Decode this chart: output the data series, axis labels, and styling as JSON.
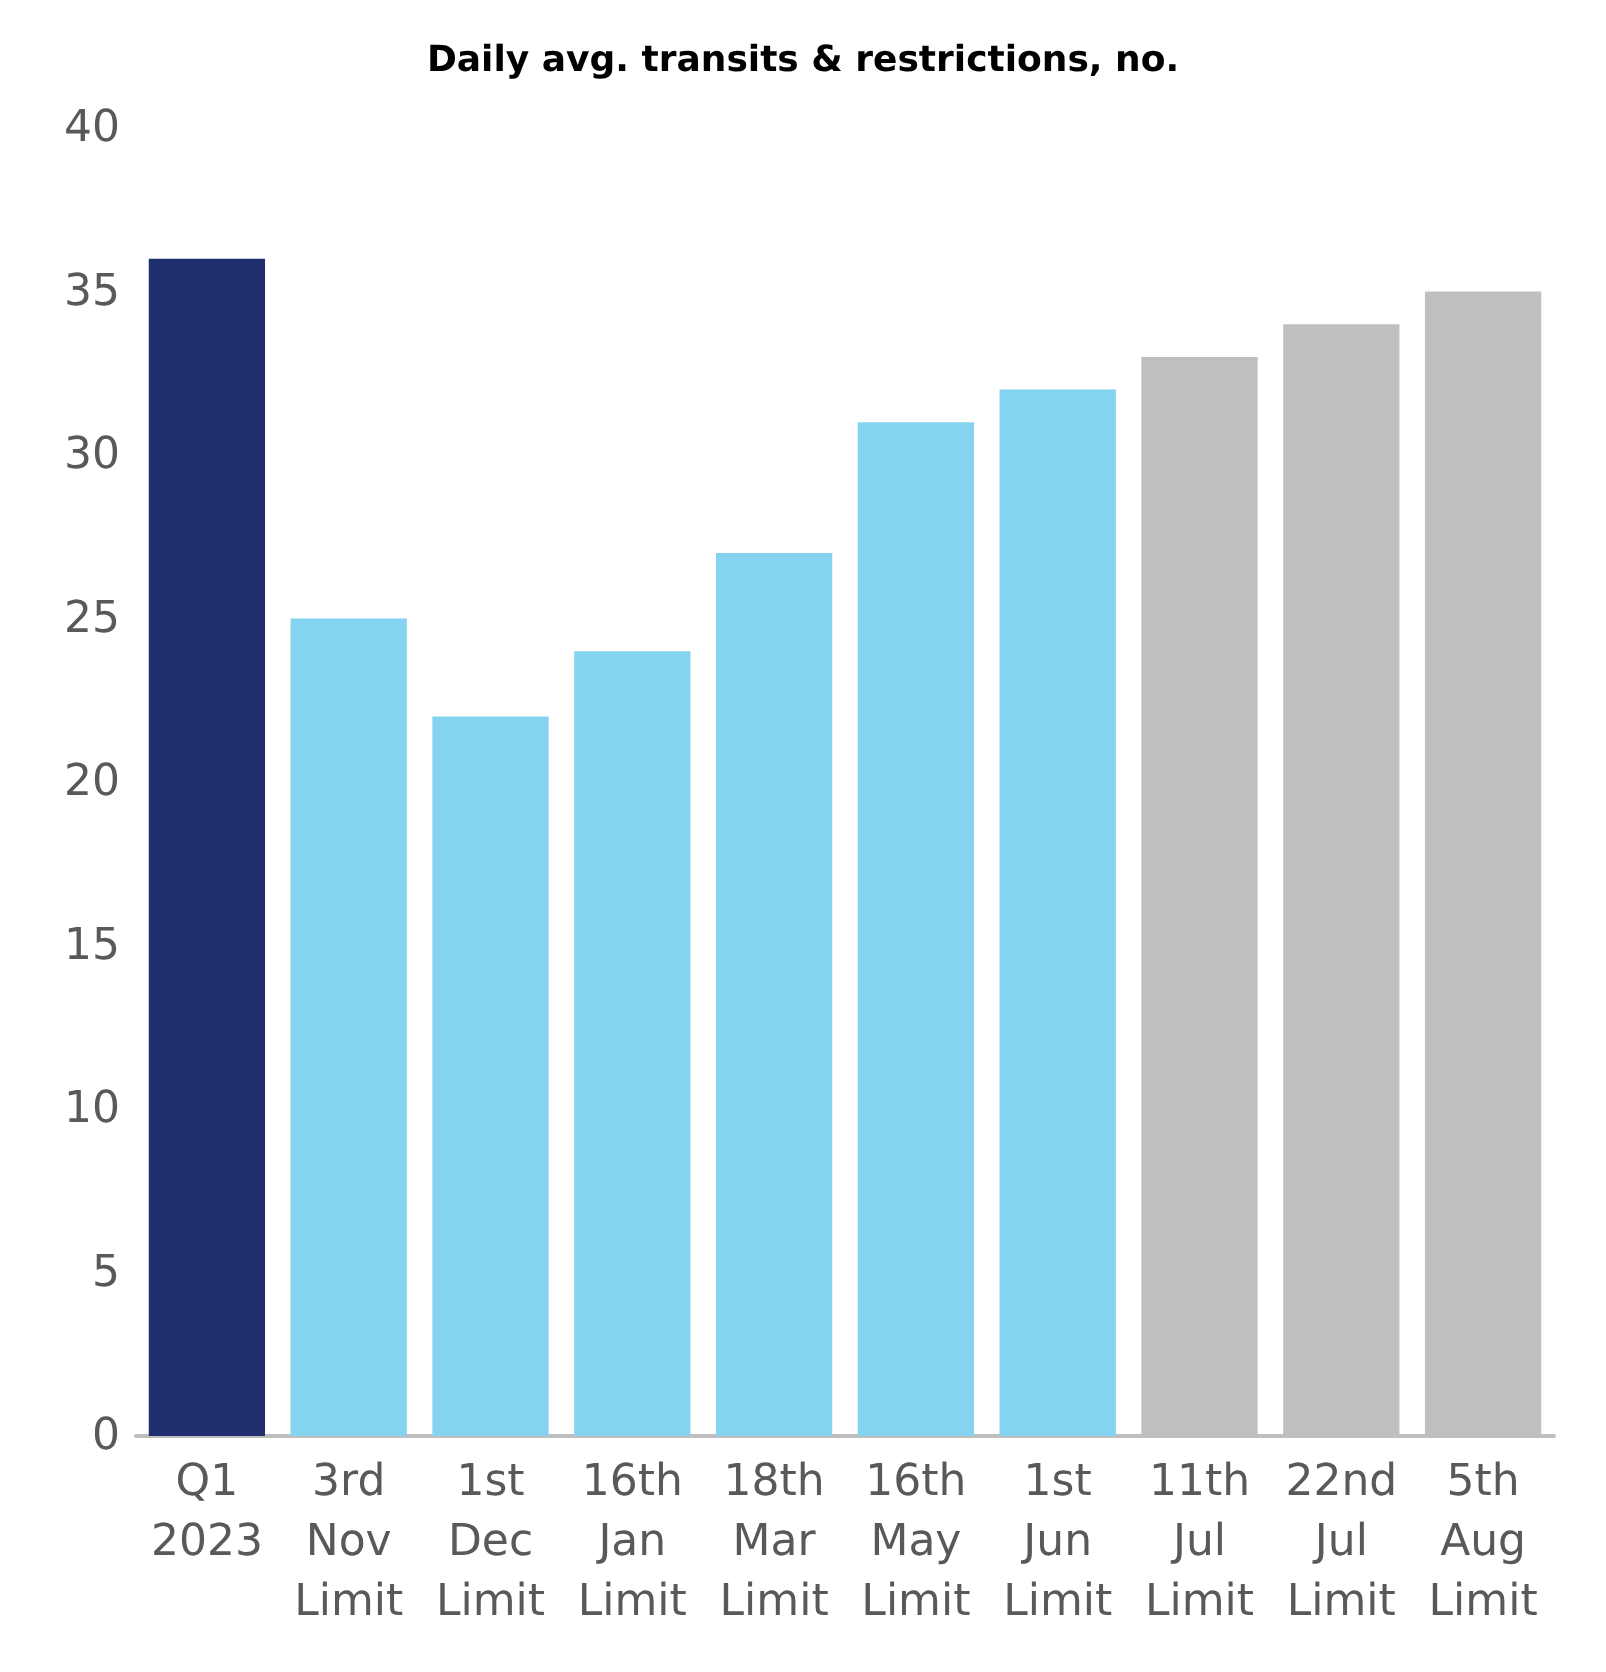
{
  "chart_data": {
    "type": "bar",
    "title": "Daily avg. transits & restrictions, no.",
    "categories": [
      "Q1\n2023",
      "3rd\nNov\nLimit",
      "1st\nDec\nLimit",
      "16th\nJan\nLimit",
      "18th\nMar\nLimit",
      "16th\nMay\nLimit",
      "1st\nJun\nLimit",
      "11th\nJul\nLimit",
      "22nd\nJul\nLimit",
      "5th\nAug\nLimit"
    ],
    "values": [
      36,
      25,
      22,
      24,
      27,
      31,
      32,
      33,
      34,
      35
    ],
    "colors": [
      "#20306e",
      "#84d3f0",
      "#84d3f0",
      "#84d3f0",
      "#84d3f0",
      "#84d3f0",
      "#84d3f0",
      "#bfbfbf",
      "#bfbfbf",
      "#bfbfbf"
    ],
    "ylim": [
      0,
      40
    ],
    "yticks": [
      0,
      5,
      10,
      15,
      20,
      25,
      30,
      35,
      40
    ],
    "grid": false
  }
}
